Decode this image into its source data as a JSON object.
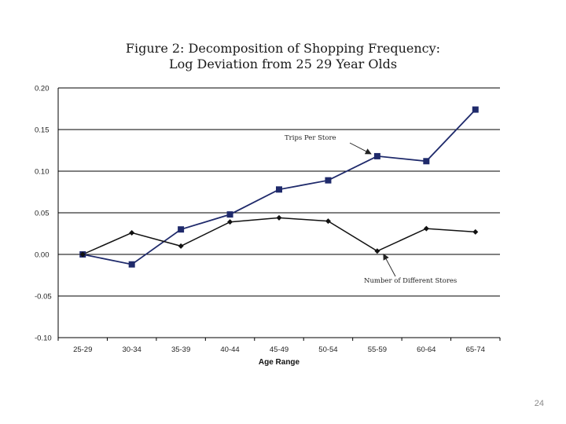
{
  "slide": {
    "title_line1": "Figure 2:  Decomposition of Shopping Frequency:",
    "title_line2": "Log Deviation from 25  29 Year Olds",
    "page_number": "24"
  },
  "colors": {
    "trips_series": "#1f2a6b",
    "stores_series": "#111111",
    "gridline": "#000000"
  },
  "chart_data": {
    "type": "line",
    "title": "Figure 2:  Decomposition of Shopping Frequency: Log Deviation from 25  29 Year Olds",
    "xlabel": "Age Range",
    "ylabel": "",
    "categories": [
      "25-29",
      "30-34",
      "35-39",
      "40-44",
      "45-49",
      "50-54",
      "55-59",
      "60-64",
      "65-74"
    ],
    "ylim": [
      -0.1,
      0.2
    ],
    "yticks": [
      "0.20",
      "0.15",
      "0.10",
      "0.05",
      "0.00",
      "-0.05",
      "-0.10"
    ],
    "grid": true,
    "series": [
      {
        "name": "Trips Per Store",
        "marker": "square",
        "values": [
          0.0,
          -0.012,
          0.03,
          0.048,
          0.078,
          0.089,
          0.118,
          0.112,
          0.174
        ]
      },
      {
        "name": "Number of Different Stores",
        "marker": "diamond",
        "values": [
          0.0,
          0.026,
          0.01,
          0.039,
          0.044,
          0.04,
          0.004,
          0.031,
          0.027
        ]
      }
    ],
    "annotations": [
      {
        "text": "Trips Per Store",
        "series": "Trips Per Store"
      },
      {
        "text": "Number of Different Stores",
        "series": "Number of Different Stores"
      }
    ]
  }
}
